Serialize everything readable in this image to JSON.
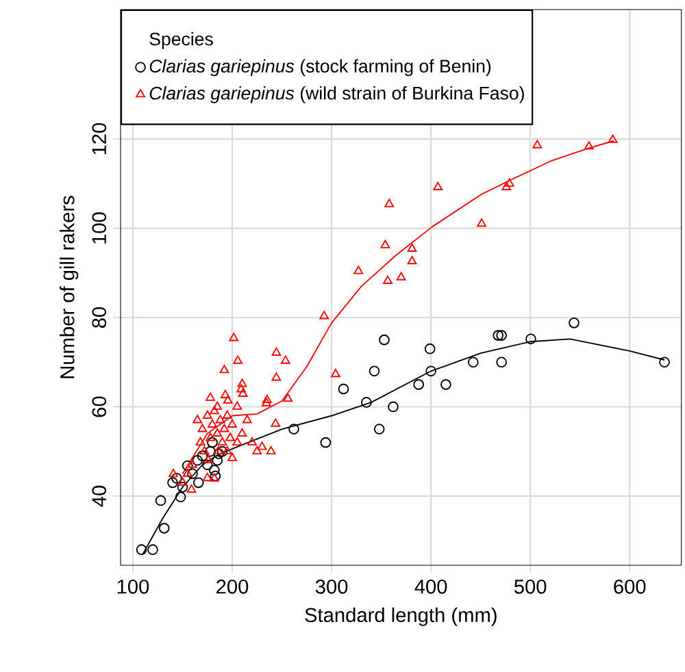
{
  "chart_data": {
    "type": "scatter",
    "xlabel": "Standard length (mm)",
    "ylabel": "Number of gill rakers",
    "legend_title": "Species",
    "legend": "top left",
    "grid": true,
    "xlim": [
      87.6,
      652
    ],
    "ylim": [
      24.5,
      149
    ],
    "xticks": [
      100,
      200,
      300,
      400,
      500,
      600
    ],
    "yticks": [
      40,
      60,
      80,
      100,
      120
    ],
    "series": [
      {
        "name": "*Clarias gariepinus* (stock farming of Benin)",
        "color": "#000000",
        "marker": "circle",
        "x": [
          108.7,
          120,
          131.5,
          128,
          148,
          144,
          155,
          166,
          182,
          183,
          186.4,
          262,
          294,
          312,
          335,
          348,
          362,
          353,
          399,
          387.6,
          400,
          415,
          442.5,
          467.6,
          471,
          471,
          500.5,
          544,
          635,
          343,
          170,
          175,
          178,
          180,
          185,
          190,
          160,
          165,
          150,
          140
        ],
        "values": [
          28,
          28,
          32.8,
          39,
          39.8,
          44,
          46.8,
          43,
          45.8,
          44.5,
          49.5,
          55,
          52,
          64,
          61,
          55,
          60,
          75,
          73,
          65,
          68,
          65,
          70,
          76,
          76,
          70,
          75.2,
          78.8,
          70,
          68,
          49,
          47,
          50,
          52,
          48,
          50,
          45,
          48,
          42,
          43
        ]
      },
      {
        "name": "*Clarias gariepinus* (wild strain of Burkina Faso)",
        "color": "#ff0000",
        "marker": "triangle",
        "x": [
          358,
          354,
          327,
          356.5,
          292.5,
          201.5,
          205.6,
          192,
          244.4,
          253.6,
          244.4,
          210,
          210.7,
          304,
          235,
          256,
          193,
          507,
          559,
          583,
          407,
          479,
          476,
          451,
          381,
          381,
          370,
          234.4,
          239,
          225,
          200,
          182,
          159,
          140.7,
          243.6,
          209,
          195.6,
          165,
          170,
          175,
          178,
          180,
          182,
          185,
          188,
          190,
          192,
          195,
          198,
          200,
          205,
          210,
          215,
          220,
          172,
          168,
          176,
          186,
          160,
          155,
          150,
          175,
          195,
          205,
          230,
          185,
          178
        ],
        "values": [
          105.4,
          96.2,
          90.4,
          88.2,
          80.3,
          75.4,
          70.3,
          68.2,
          72.1,
          70.3,
          66.5,
          65.1,
          62.9,
          67.3,
          61.5,
          61.8,
          62.6,
          118.6,
          118.3,
          119.8,
          109.2,
          110,
          109.2,
          101,
          95.4,
          92.6,
          89,
          60.8,
          50,
          50,
          48.5,
          43.9,
          41.4,
          44.9,
          56.2,
          63.9,
          61.4,
          57,
          55,
          58,
          53,
          56,
          59,
          54,
          57,
          52,
          55,
          58,
          53,
          56,
          60,
          54,
          57,
          52,
          50,
          52,
          48,
          50,
          47,
          45,
          43,
          44,
          50,
          52,
          51,
          60,
          62
        ]
      },
      {
        "type": "line",
        "color": "#000000",
        "marker": "none",
        "x": [
          110,
          130,
          150,
          170,
          184,
          200,
          250,
          300,
          340,
          400,
          450,
          500,
          540,
          600,
          635
        ],
        "values": [
          27,
          35,
          42,
          47,
          49,
          50.6,
          55,
          58,
          61,
          68,
          72,
          74.6,
          75.2,
          72.5,
          70.5
        ]
      },
      {
        "type": "line",
        "color": "#ff0000",
        "marker": "none",
        "x": [
          150,
          175,
          200,
          225,
          250,
          275,
          300,
          330,
          365,
          401,
          450,
          479,
          520,
          557,
          584
        ],
        "values": [
          45,
          54,
          58,
          58.4,
          61.3,
          69,
          78.8,
          87,
          94,
          100.3,
          107.5,
          110.7,
          115,
          117.8,
          119.6
        ]
      }
    ]
  }
}
